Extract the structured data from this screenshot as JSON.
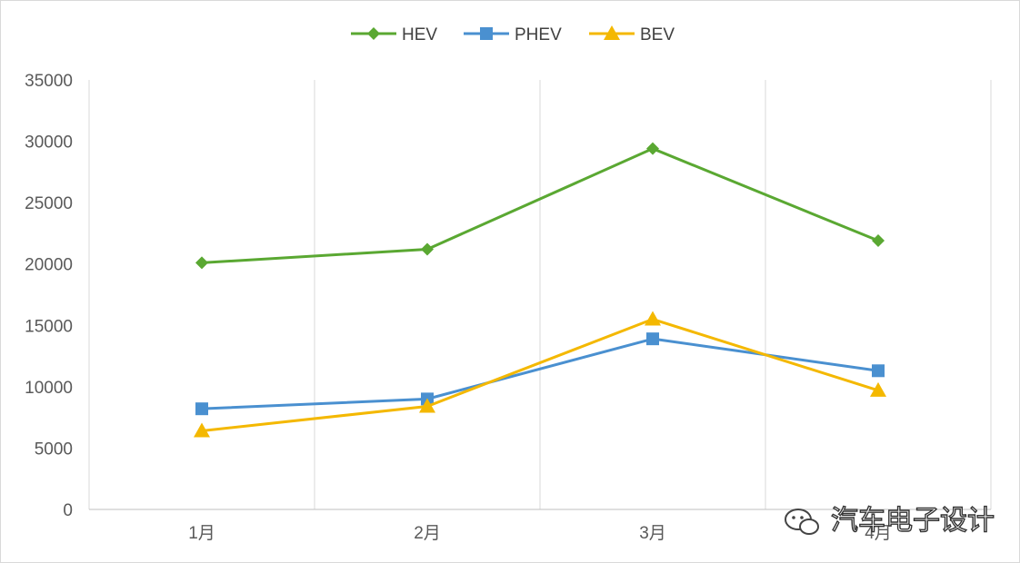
{
  "chart_data": {
    "type": "line",
    "categories": [
      "1月",
      "2月",
      "3月",
      "4月"
    ],
    "series": [
      {
        "name": "HEV",
        "values": [
          20100,
          21200,
          29400,
          21900
        ],
        "color": "#5aa832",
        "marker": "diamond"
      },
      {
        "name": "PHEV",
        "values": [
          8200,
          9000,
          13900,
          11300
        ],
        "color": "#4a90d0",
        "marker": "square"
      },
      {
        "name": "BEV",
        "values": [
          6400,
          8400,
          15500,
          9700
        ],
        "color": "#f4b800",
        "marker": "triangle"
      }
    ],
    "ylim": [
      0,
      35000
    ],
    "yticks": [
      0,
      5000,
      10000,
      15000,
      20000,
      25000,
      30000,
      35000
    ],
    "grid": "vertical",
    "legend": "top-center",
    "title": "",
    "xlabel": "",
    "ylabel": ""
  },
  "watermark": {
    "text": "汽车电子设计",
    "icon": "wechat-icon"
  }
}
